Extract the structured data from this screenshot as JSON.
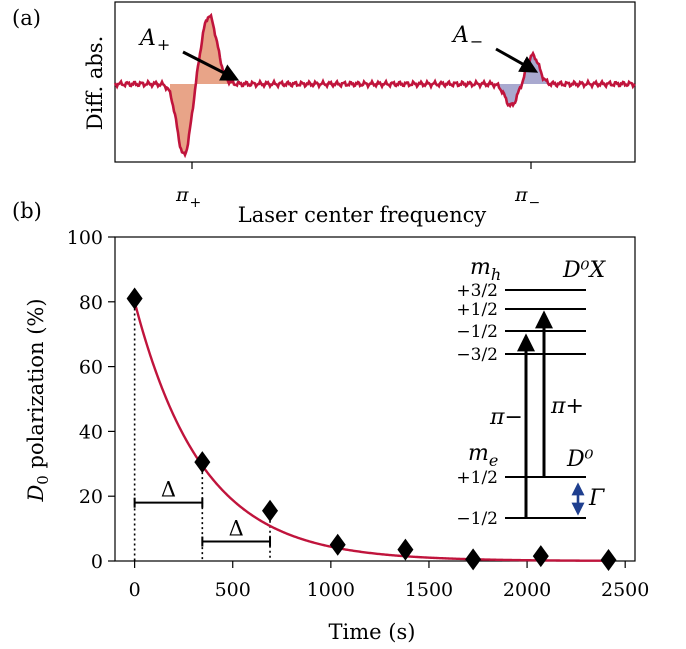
{
  "chart_data": [
    {
      "panel": "(a)",
      "type": "line",
      "ylabel": "Diff. abs.",
      "xlabel": "Laser center frequency",
      "x_ticks": [
        {
          "label_base": "π",
          "label_sub": "+",
          "x": 0
        },
        {
          "label_base": "π",
          "label_sub": "−",
          "x": 1
        }
      ],
      "annotations": [
        {
          "label_base": "A",
          "label_sub": "+",
          "target": "π+ peak"
        },
        {
          "label_base": "A",
          "label_sub": "−",
          "target": "π− peak"
        }
      ],
      "peaks": [
        {
          "center": 0,
          "positive_peak": 1.0,
          "negative_peak": -1.05,
          "fill_neg": "#e8a488",
          "fill_pos": "#e8a488"
        },
        {
          "center": 1,
          "positive_peak": 0.42,
          "negative_peak": -0.32,
          "fill_neg": "#a9a9cf",
          "fill_pos": "#a9a9cf"
        }
      ],
      "line_color": "#c0143c"
    },
    {
      "panel": "(b)",
      "type": "scatter",
      "xlabel": "Time (s)",
      "ylabel_base": "D",
      "ylabel_sub": "0",
      "ylabel_rest": " polarization (%)",
      "xlim": [
        -100,
        2550
      ],
      "ylim": [
        0,
        100
      ],
      "x_ticks": [
        0,
        500,
        1000,
        1500,
        2000,
        2500
      ],
      "y_ticks": [
        0,
        20,
        40,
        60,
        80,
        100
      ],
      "points": {
        "x": [
          0,
          345,
          690,
          1035,
          1380,
          1725,
          2070,
          2415
        ],
        "y": [
          81,
          30.5,
          15.5,
          5,
          3.5,
          0.5,
          1.5,
          0.3
        ]
      },
      "fit": {
        "amplitude": 80,
        "tau": 345,
        "color": "#c0143c"
      },
      "delta_label": "Δ",
      "inset": {
        "top_left_label_base": "m",
        "top_left_label_sub": "h",
        "top_right_label": "D⁰X",
        "bottom_left_label_base": "m",
        "bottom_left_label_sub": "e",
        "bottom_right_label": "D⁰",
        "upper_levels": [
          "+3/2",
          "+1/2",
          "−1/2",
          "−3/2"
        ],
        "lower_levels": [
          "+1/2",
          "−1/2"
        ],
        "transition_minus": "π−",
        "transition_plus": "π+",
        "gamma_label": "Γ",
        "gamma_color": "#1f3f8f"
      }
    }
  ]
}
